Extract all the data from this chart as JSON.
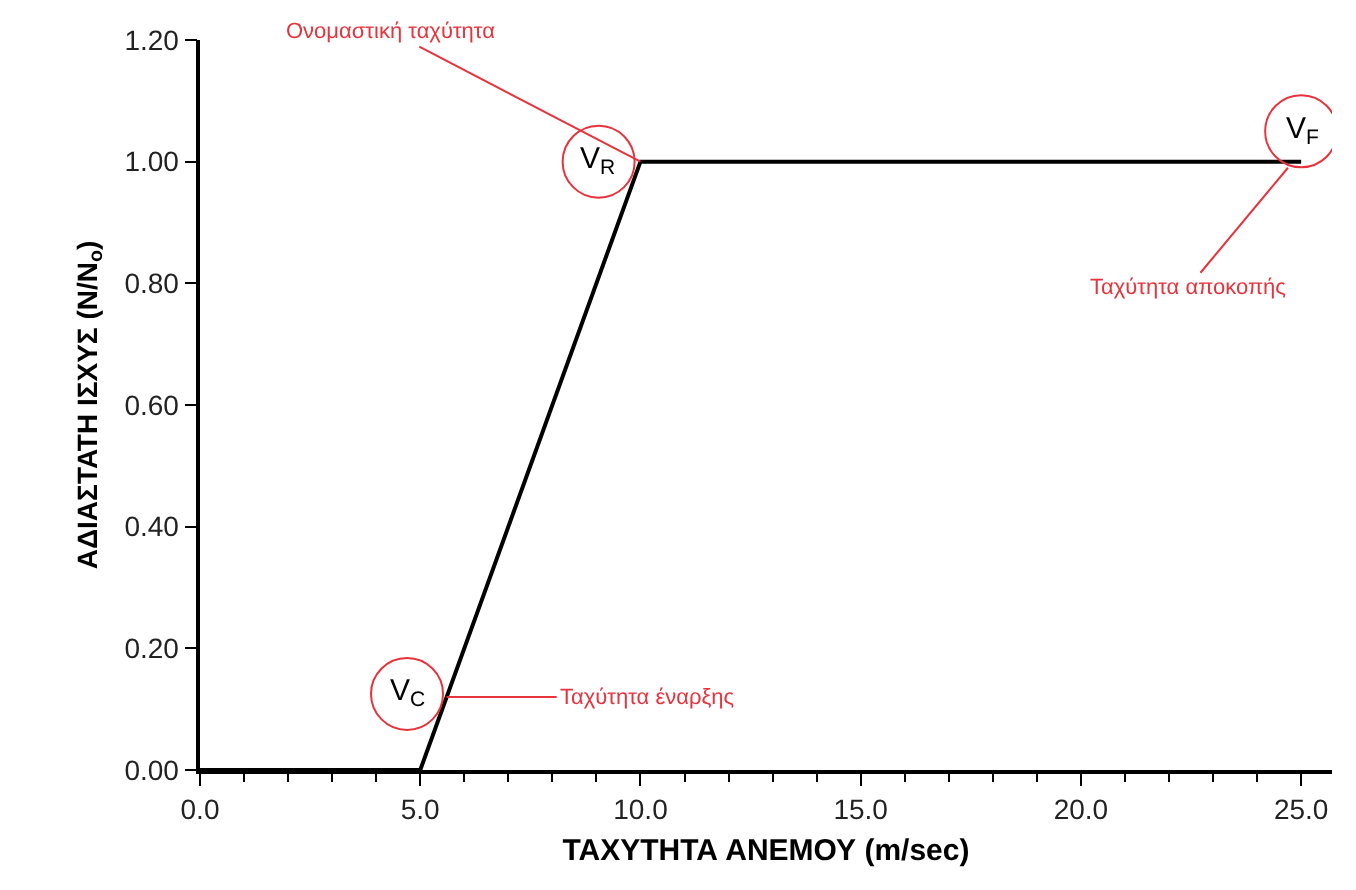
{
  "chart_data": {
    "type": "line",
    "x": [
      0,
      5,
      10,
      25
    ],
    "series": [
      {
        "color": "#000000",
        "values": [
          0,
          0,
          1,
          1
        ]
      }
    ],
    "xlabel": "ΤΑΧΥΤΗΤΑ ΑΝΕΜΟΥ (m/sec)",
    "ylabel": "ΑΔΙΑΣΤΑΤΗ ΙΣΧΥΣ (N/N$_{o}$)",
    "xlim": [
      0,
      25.7
    ],
    "ylim": [
      0,
      1.2
    ],
    "xticks": [
      {
        "value": 0,
        "label": "0.0"
      },
      {
        "value": 5,
        "label": "5.0"
      },
      {
        "value": 10,
        "label": "10.0"
      },
      {
        "value": 15,
        "label": "15.0"
      },
      {
        "value": 20,
        "label": "20.0"
      },
      {
        "value": 25,
        "label": "25.0"
      }
    ],
    "yticks": [
      {
        "value": 0,
        "label": "0.00"
      },
      {
        "value": 0.2,
        "label": "0.20"
      },
      {
        "value": 0.4,
        "label": "0.40"
      },
      {
        "value": 0.6,
        "label": "0.60"
      },
      {
        "value": 0.8,
        "label": "0.80"
      },
      {
        "value": 1.0,
        "label": "1.00"
      },
      {
        "value": 1.2,
        "label": "1.20"
      }
    ],
    "marker": "none",
    "line_style": "solid",
    "annotations": [
      {
        "text": "V$_{C}$",
        "x": 4.7,
        "y": 0.125
      },
      {
        "text": "V$_{R}$",
        "x": 9.05,
        "y": 1.0
      },
      {
        "text": "V$_{F}$",
        "x": 25,
        "y": 1.05
      },
      {
        "text": "Ταχύτητα έναρξης",
        "x": 5.6,
        "y": 0.12
      },
      {
        "text": "Ονομαστική ταχύτητα",
        "x": 10,
        "y": 1.0
      },
      {
        "text": "Ταχύτητα αποκοπής",
        "x": 24.7,
        "y": 0.99
      }
    ]
  }
}
